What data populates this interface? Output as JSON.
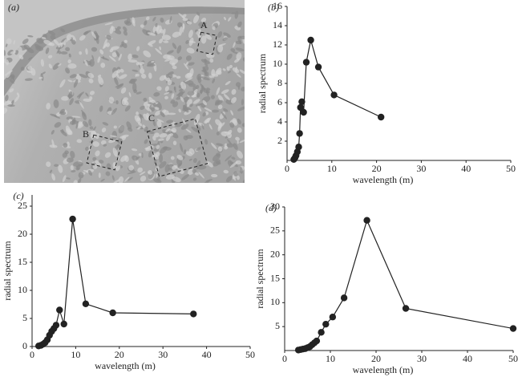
{
  "image_panel": {
    "label": "(a)",
    "regions": [
      "A",
      "B",
      "C"
    ]
  },
  "chart_data": [
    {
      "type": "line",
      "title": "(b)",
      "xlabel": "wavelength (m)",
      "ylabel": "radial spectrum",
      "x": [
        1.5,
        1.8,
        2,
        2.3,
        2.6,
        2.8,
        3,
        3.3,
        3.7,
        4.3,
        5.3,
        7,
        10.5,
        21
      ],
      "values": [
        0.1,
        0.3,
        0.5,
        0.9,
        1.4,
        2.8,
        5.5,
        6.1,
        5.0,
        10.2,
        12.5,
        9.7,
        6.8,
        4.5
      ],
      "color": "#222",
      "xlim": [
        0,
        50
      ],
      "xticks": [
        0,
        10,
        20,
        30,
        40,
        50
      ],
      "ylim": [
        0,
        16
      ],
      "yticks": [
        2,
        4,
        6,
        8,
        10,
        12,
        14,
        16
      ]
    },
    {
      "type": "line",
      "title": "(c)",
      "xlabel": "wavelength (m)",
      "ylabel": "radial spectrum",
      "x": [
        1.5,
        2,
        2.5,
        3,
        3.5,
        4,
        4.5,
        5,
        5.5,
        6.3,
        7.3,
        9.3,
        12.3,
        18.5,
        37
      ],
      "values": [
        0.1,
        0.2,
        0.4,
        0.7,
        1.2,
        2,
        2.7,
        3.2,
        3.8,
        6.5,
        4,
        22.7,
        7.6,
        6,
        5.8
      ],
      "color": "#222",
      "xlim": [
        0,
        50
      ],
      "xticks": [
        0,
        10,
        20,
        30,
        40,
        50
      ],
      "ylim": [
        0,
        27
      ],
      "yticks": [
        0,
        5,
        10,
        15,
        20,
        25
      ]
    },
    {
      "type": "line",
      "title": "(d)",
      "xlabel": "wavelength (m)",
      "ylabel": "radial spectrum",
      "x": [
        3,
        3.5,
        4,
        4.5,
        5,
        5.5,
        6,
        6.5,
        7,
        8,
        9,
        10.5,
        13,
        18,
        26.5,
        50
      ],
      "values": [
        0.1,
        0.2,
        0.3,
        0.4,
        0.6,
        0.8,
        1.2,
        1.6,
        2,
        3.8,
        5.5,
        7,
        11,
        27.2,
        8.8,
        4.6
      ],
      "color": "#222",
      "xlim": [
        0,
        50
      ],
      "xticks": [
        0,
        10,
        20,
        30,
        40,
        50
      ],
      "ylim": [
        0,
        30
      ],
      "yticks": [
        5,
        10,
        15,
        20,
        25,
        30
      ]
    }
  ]
}
